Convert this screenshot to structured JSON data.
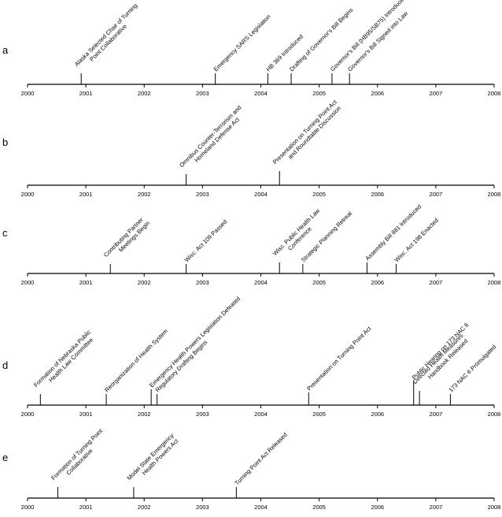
{
  "figure": {
    "panels": [
      {
        "letter": "a",
        "events": [
          {
            "year": 2000.92,
            "label": "Alaska Selected Chair of Turning\nPoint Collaborative"
          },
          {
            "year": 2003.22,
            "label": "Emergency SARS Legislation"
          },
          {
            "year": 2004.12,
            "label": "HB 369 Introduced"
          },
          {
            "year": 2004.52,
            "label": "Drafting of Governor's Bill Begins"
          },
          {
            "year": 2005.22,
            "label": "Governor's Bill (HB95/SB75) Introduced"
          },
          {
            "year": 2005.52,
            "label": "Governor's Bill Signed into Law"
          }
        ]
      },
      {
        "letter": "b",
        "events": [
          {
            "year": 2002.72,
            "label": "Omnibus Counter-Terrorism and\nHomeland Defense Act"
          },
          {
            "year": 2004.32,
            "label": "Presentation on Turning Point Act\nand Roundtable Discussion"
          }
        ]
      },
      {
        "letter": "c",
        "events": [
          {
            "year": 2001.42,
            "label": "Contributing Partner\nMeetings Begin"
          },
          {
            "year": 2002.72,
            "label": "Wisc. Act 109 Passed"
          },
          {
            "year": 2004.32,
            "label": "Wisc. Public Health Law\nConference"
          },
          {
            "year": 2004.72,
            "label": "Strategic Planning Retreat"
          },
          {
            "year": 2005.82,
            "label": "Assembly Bill 881 Introduced"
          },
          {
            "year": 2006.32,
            "label": "Wisc. Act 198 Enacted"
          }
        ]
      },
      {
        "letter": "d",
        "events": [
          {
            "year": 2000.22,
            "label": "Formation of Nebraska Public\nHealth Law Committee"
          },
          {
            "year": 2001.35,
            "label": "Reorganization of Health System"
          },
          {
            "year": 2002.12,
            "label": "Emergency Health Powers Legislation Defeated"
          },
          {
            "year": 2002.22,
            "label": "Regulatory Drafting Begins"
          },
          {
            "year": 2004.82,
            "label": "Presentation on Turning Point Act"
          },
          {
            "year": 2006.62,
            "label": "Public Hearing on 173 NAC 6"
          },
          {
            "year": 2006.72,
            "label": "Directed Health Measures\nHandbook Released"
          },
          {
            "year": 2007.25,
            "label": "173 NAC 6 Promulgated"
          }
        ]
      },
      {
        "letter": "e",
        "events": [
          {
            "year": 2000.52,
            "label": "Formation of Turning Point\nCollaborative"
          },
          {
            "year": 2001.82,
            "label": "Model State Emergency\nHealth Powers Act"
          },
          {
            "year": 2003.58,
            "label": "Turning Point Act Released"
          }
        ]
      }
    ],
    "years": [
      "2000",
      "2001",
      "2002",
      "2003",
      "2004",
      "2005",
      "2006",
      "2007",
      "2008"
    ]
  }
}
